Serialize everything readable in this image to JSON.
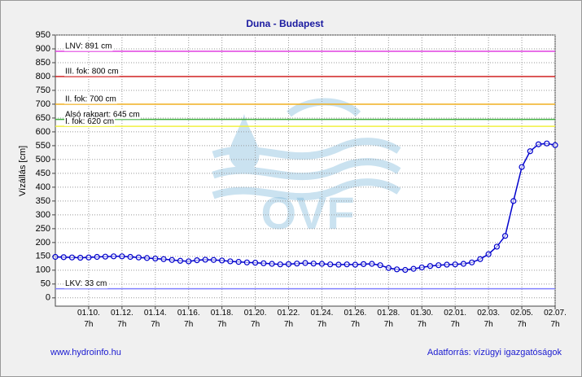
{
  "chart_data": {
    "type": "line",
    "title": "Duna - Budapest",
    "y_label": "Vízállás [cm]",
    "watermark": "OVF",
    "footer_left": "www.hydroinfo.hu",
    "footer_right": "Adatforrás: vízügyi igazgatóságok",
    "categories": [
      null,
      null,
      null,
      null,
      "01.10.\n7h",
      null,
      null,
      null,
      "01.12.\n7h",
      null,
      null,
      null,
      "01.14.\n7h",
      null,
      null,
      null,
      "01.16.\n7h",
      null,
      null,
      null,
      "01.18.\n7h",
      null,
      null,
      null,
      "01.20.\n7h",
      null,
      null,
      null,
      "01.22.\n7h",
      null,
      null,
      null,
      "01.24.\n7h",
      null,
      null,
      null,
      "01.26.\n7h",
      null,
      null,
      null,
      "01.28.\n7h",
      null,
      null,
      null,
      "01.30.\n7h",
      null,
      null,
      null,
      "02.01.\n7h",
      null,
      null,
      null,
      "02.03.\n7h",
      null,
      null,
      null,
      "02.05.\n7h",
      null,
      null,
      null,
      "02.07.\n7h"
    ],
    "series": [
      {
        "color": "#0000cc",
        "values": [
          148,
          147,
          146,
          145,
          146,
          148,
          149,
          150,
          150,
          148,
          146,
          144,
          142,
          140,
          137,
          134,
          132,
          136,
          138,
          137,
          135,
          132,
          130,
          128,
          127,
          125,
          123,
          121,
          122,
          124,
          126,
          124,
          123,
          121,
          120,
          121,
          120,
          122,
          123,
          118,
          108,
          103,
          101,
          105,
          110,
          115,
          118,
          120,
          121,
          123,
          128,
          140,
          158,
          185,
          224,
          350,
          473,
          530,
          555,
          558,
          552
        ]
      }
    ],
    "thresholds": [
      {
        "label": "LNV: 891 cm",
        "value": 891,
        "color": "#e040e0"
      },
      {
        "label": "III. fok: 800 cm",
        "value": 800,
        "color": "#d02020"
      },
      {
        "label": "II. fok: 700 cm",
        "value": 700,
        "color": "#f0b020"
      },
      {
        "label": "Alsó rakpart: 645 cm",
        "value": 645,
        "color": "#40b040"
      },
      {
        "label": "I. fok: 620 cm",
        "value": 620,
        "color": "#f0f040"
      },
      {
        "label": "LKV: 33 cm",
        "value": 33,
        "color": "#8080ff"
      }
    ],
    "ylim": [
      -30,
      950
    ],
    "yticks": [
      0,
      50,
      100,
      150,
      200,
      250,
      300,
      350,
      400,
      450,
      500,
      550,
      600,
      650,
      700,
      750,
      800,
      850,
      900,
      950
    ],
    "grid": true
  }
}
